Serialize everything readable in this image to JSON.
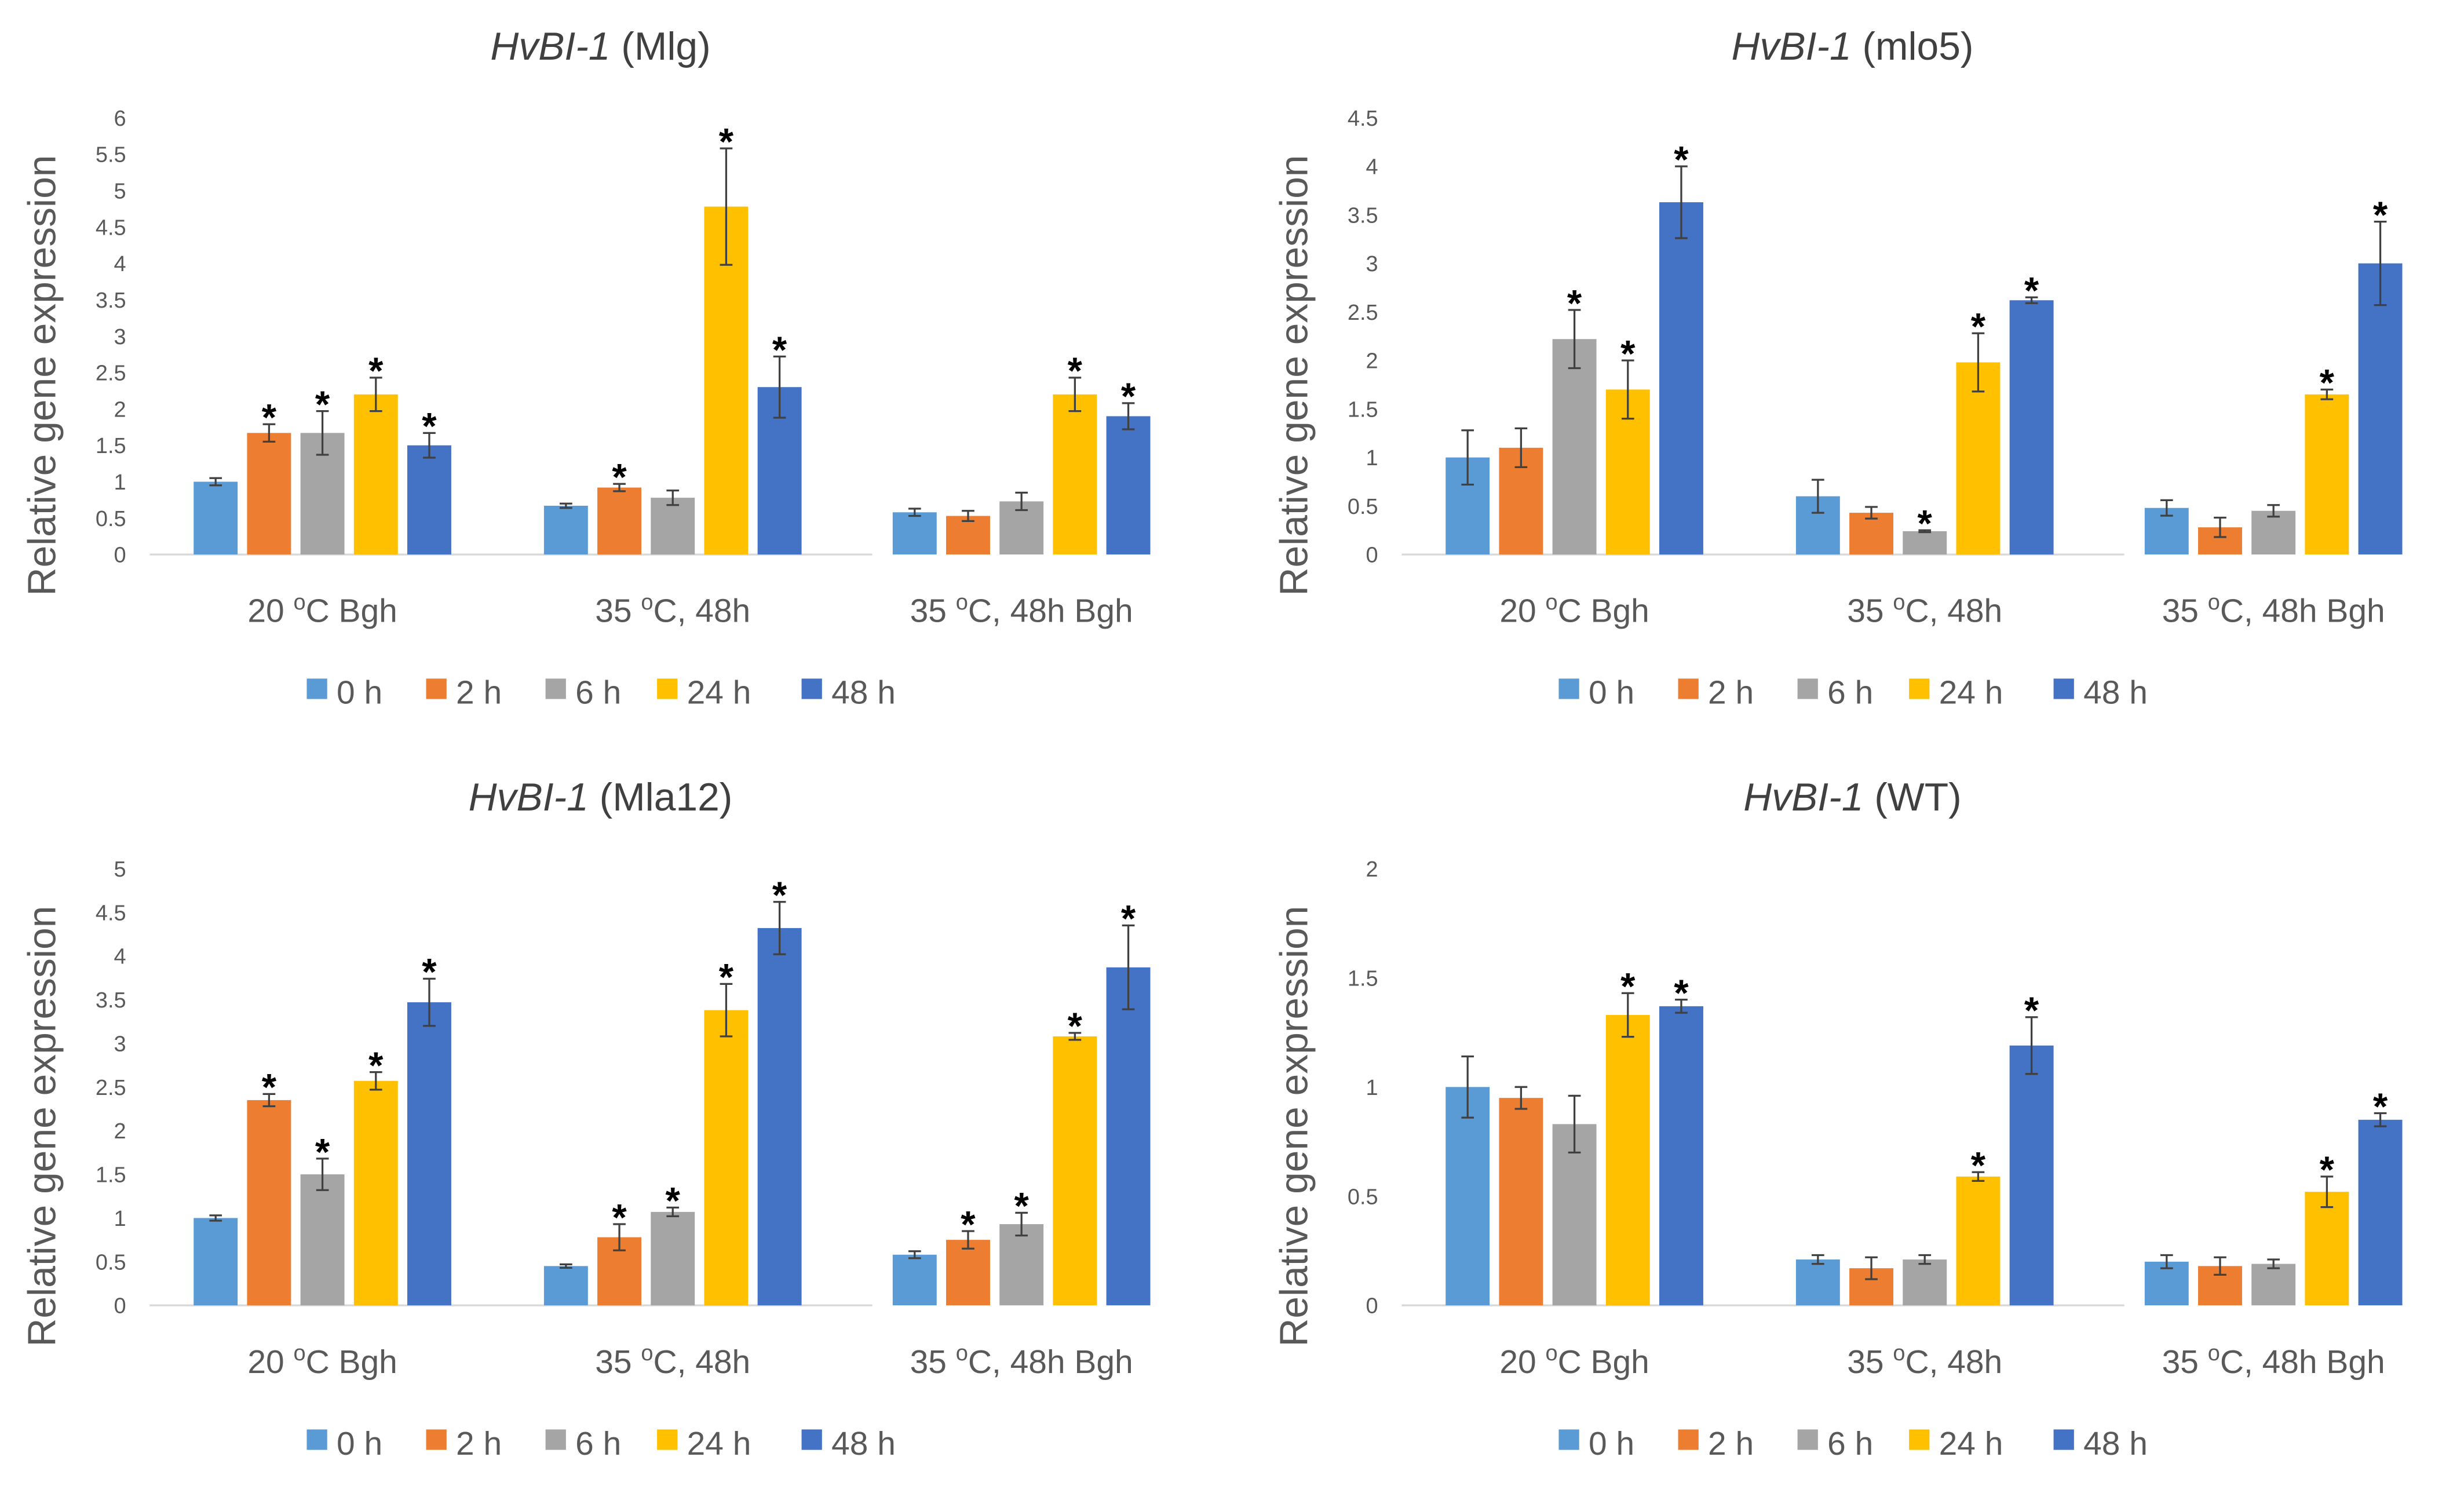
{
  "series_colors": {
    "0 h": "#5b9bd5",
    "2 h": "#ed7d31",
    "6 h": "#a5a5a5",
    "24 h": "#ffc000",
    "48 h": "#4472c4"
  },
  "chart_data": [
    {
      "type": "bar",
      "title_gene": "HvBI-1",
      "title_genotype": "(Mlg)",
      "ylabel": "Relative gene expression",
      "ylim": [
        0,
        6
      ],
      "ystep": 0.5,
      "yticks": [
        "0",
        "0.5",
        "1",
        "1.5",
        "2",
        "2.5",
        "3",
        "3.5",
        "4",
        "4.5",
        "5",
        "5.5",
        "6"
      ],
      "categories": [
        {
          "num": "20 ",
          "sup": "o",
          "rest": "C Bgh"
        },
        {
          "num": "35 ",
          "sup": "o",
          "rest": "C, 48h"
        },
        {
          "num": "35 ",
          "sup": "o",
          "rest": "C, 48h Bgh"
        }
      ],
      "legend": [
        "0 h",
        "2 h",
        "6 h",
        "24 h",
        "48 h"
      ],
      "legend_position": "bottom",
      "series": [
        {
          "name": "0 h",
          "values": [
            1.0,
            0.67,
            0.58
          ],
          "errors": [
            0.05,
            0.03,
            0.05
          ],
          "significant": [
            false,
            false,
            false
          ]
        },
        {
          "name": "2 h",
          "values": [
            1.67,
            0.92,
            0.53
          ],
          "errors": [
            0.12,
            0.05,
            0.07
          ],
          "significant": [
            true,
            true,
            false
          ]
        },
        {
          "name": "6 h",
          "values": [
            1.67,
            0.78,
            0.73
          ],
          "errors": [
            0.3,
            0.1,
            0.12
          ],
          "significant": [
            true,
            false,
            false
          ]
        },
        {
          "name": "24 h",
          "values": [
            2.2,
            4.78,
            2.2
          ],
          "errors": [
            0.23,
            0.8,
            0.23
          ],
          "significant": [
            true,
            true,
            true
          ]
        },
        {
          "name": "48 h",
          "values": [
            1.5,
            2.3,
            1.9
          ],
          "errors": [
            0.17,
            0.42,
            0.18
          ],
          "significant": [
            true,
            true,
            true
          ]
        }
      ],
      "significance_marker": "*"
    },
    {
      "type": "bar",
      "title_gene": "HvBI-1",
      "title_genotype": "(mlo5)",
      "ylabel": "Relative gene expression",
      "ylim": [
        0,
        4.5
      ],
      "ystep": 0.5,
      "yticks": [
        "0",
        "0.5",
        "1",
        "1.5",
        "2",
        "2.5",
        "3",
        "3.5",
        "4",
        "4.5"
      ],
      "categories": [
        {
          "num": "20 ",
          "sup": "o",
          "rest": "C Bgh"
        },
        {
          "num": "35 ",
          "sup": "o",
          "rest": "C, 48h"
        },
        {
          "num": "35 ",
          "sup": "o",
          "rest": "C, 48h Bgh"
        }
      ],
      "legend": [
        "0 h",
        "2 h",
        "6 h",
        "24 h",
        "48 h"
      ],
      "legend_position": "bottom",
      "series": [
        {
          "name": "0 h",
          "values": [
            1.0,
            0.6,
            0.48
          ],
          "errors": [
            0.28,
            0.17,
            0.08
          ],
          "significant": [
            false,
            false,
            false
          ]
        },
        {
          "name": "2 h",
          "values": [
            1.1,
            0.43,
            0.28
          ],
          "errors": [
            0.2,
            0.06,
            0.1
          ],
          "significant": [
            false,
            false,
            false
          ]
        },
        {
          "name": "6 h",
          "values": [
            2.22,
            0.24,
            0.45
          ],
          "errors": [
            0.3,
            0.01,
            0.06
          ],
          "significant": [
            true,
            true,
            false
          ]
        },
        {
          "name": "24 h",
          "values": [
            1.7,
            1.98,
            1.65
          ],
          "errors": [
            0.3,
            0.3,
            0.05
          ],
          "significant": [
            true,
            true,
            true
          ]
        },
        {
          "name": "48 h",
          "values": [
            3.63,
            2.62,
            3.0
          ],
          "errors": [
            0.37,
            0.03,
            0.43
          ],
          "significant": [
            true,
            true,
            true
          ]
        }
      ],
      "significance_marker": "*"
    },
    {
      "type": "bar",
      "title_gene": "HvBI-1",
      "title_genotype": "(Mla12)",
      "ylabel": "Relative gene expression",
      "ylim": [
        0,
        5
      ],
      "ystep": 0.5,
      "yticks": [
        "0",
        "0.5",
        "1",
        "1.5",
        "2",
        "2.5",
        "3",
        "3.5",
        "4",
        "4.5",
        "5"
      ],
      "categories": [
        {
          "num": "20 ",
          "sup": "o",
          "rest": "C Bgh"
        },
        {
          "num": "35 ",
          "sup": "o",
          "rest": "C, 48h"
        },
        {
          "num": "35 ",
          "sup": "o",
          "rest": "C, 48h Bgh"
        }
      ],
      "legend": [
        "0 h",
        "2 h",
        "6 h",
        "24 h",
        "48 h"
      ],
      "legend_position": "bottom",
      "series": [
        {
          "name": "0 h",
          "values": [
            1.0,
            0.45,
            0.58
          ],
          "errors": [
            0.03,
            0.02,
            0.04
          ],
          "significant": [
            false,
            false,
            false
          ]
        },
        {
          "name": "2 h",
          "values": [
            2.35,
            0.78,
            0.75
          ],
          "errors": [
            0.07,
            0.15,
            0.1
          ],
          "significant": [
            true,
            true,
            true
          ]
        },
        {
          "name": "6 h",
          "values": [
            1.5,
            1.07,
            0.93
          ],
          "errors": [
            0.18,
            0.05,
            0.13
          ],
          "significant": [
            true,
            true,
            true
          ]
        },
        {
          "name": "24 h",
          "values": [
            2.57,
            3.38,
            3.08
          ],
          "errors": [
            0.1,
            0.3,
            0.04
          ],
          "significant": [
            true,
            true,
            true
          ]
        },
        {
          "name": "48 h",
          "values": [
            3.47,
            4.32,
            3.87
          ],
          "errors": [
            0.27,
            0.3,
            0.48
          ],
          "significant": [
            true,
            true,
            true
          ]
        }
      ],
      "significance_marker": "*"
    },
    {
      "type": "bar",
      "title_gene": "HvBI-1",
      "title_genotype": "(WT)",
      "ylabel": "Relative gene expression",
      "ylim": [
        0,
        2
      ],
      "ystep": 0.5,
      "yticks": [
        "0",
        "0.5",
        "1",
        "1.5",
        "2"
      ],
      "categories": [
        {
          "num": "20 ",
          "sup": "o",
          "rest": "C Bgh"
        },
        {
          "num": "35 ",
          "sup": "o",
          "rest": "C, 48h"
        },
        {
          "num": "35 ",
          "sup": "o",
          "rest": "C, 48h Bgh"
        }
      ],
      "legend": [
        "0 h",
        "2 h",
        "6 h",
        "24 h",
        "48 h"
      ],
      "legend_position": "bottom",
      "series": [
        {
          "name": "0 h",
          "values": [
            1.0,
            0.21,
            0.2
          ],
          "errors": [
            0.14,
            0.02,
            0.03
          ],
          "significant": [
            false,
            false,
            false
          ]
        },
        {
          "name": "2 h",
          "values": [
            0.95,
            0.17,
            0.18
          ],
          "errors": [
            0.05,
            0.05,
            0.04
          ],
          "significant": [
            false,
            false,
            false
          ]
        },
        {
          "name": "6 h",
          "values": [
            0.83,
            0.21,
            0.19
          ],
          "errors": [
            0.13,
            0.02,
            0.02
          ],
          "significant": [
            false,
            false,
            false
          ]
        },
        {
          "name": "24 h",
          "values": [
            1.33,
            0.59,
            0.52
          ],
          "errors": [
            0.1,
            0.02,
            0.07
          ],
          "significant": [
            true,
            true,
            true
          ]
        },
        {
          "name": "48 h",
          "values": [
            1.37,
            1.19,
            0.85
          ],
          "errors": [
            0.03,
            0.13,
            0.03
          ],
          "significant": [
            true,
            true,
            true
          ]
        }
      ],
      "significance_marker": "*"
    }
  ]
}
